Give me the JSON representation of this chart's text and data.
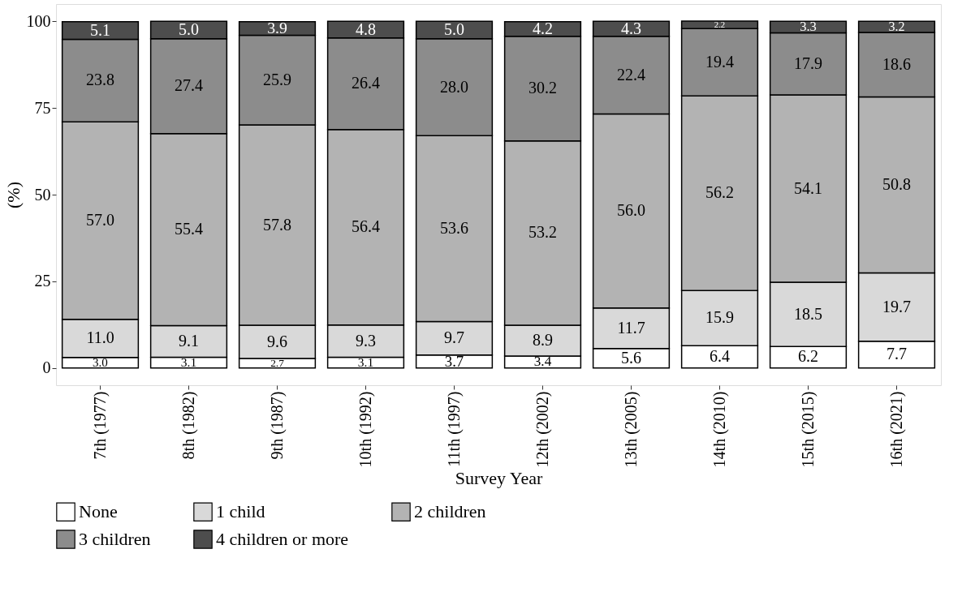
{
  "chart_data": {
    "type": "bar",
    "stacked": true,
    "xlabel": "Survey Year",
    "ylabel": "(%)",
    "categories": [
      "7th (1977)",
      "8th (1982)",
      "9th (1987)",
      "10th (1992)",
      "11th (1997)",
      "12th (2002)",
      "13th (2005)",
      "14th (2010)",
      "15th (2015)",
      "16th (2021)"
    ],
    "series": [
      {
        "name": "None",
        "color": "#ffffff",
        "values": [
          3.0,
          3.1,
          2.7,
          3.1,
          3.7,
          3.4,
          5.6,
          6.4,
          6.2,
          7.7
        ],
        "value_labels": [
          "3.0",
          "3.1",
          "2.7",
          "3.1",
          "3.7",
          "3.4",
          "5.6",
          "6.4",
          "6.2",
          "7.7"
        ]
      },
      {
        "name": "1 child",
        "color": "#d9d9d9",
        "values": [
          11.0,
          9.1,
          9.6,
          9.3,
          9.7,
          8.9,
          11.7,
          15.9,
          18.5,
          19.7
        ],
        "value_labels": [
          "11.0",
          "9.1",
          "9.6",
          "9.3",
          "9.7",
          "8.9",
          "11.7",
          "15.9",
          "18.5",
          "19.7"
        ]
      },
      {
        "name": "2 children",
        "color": "#b3b3b3",
        "values": [
          57.0,
          55.4,
          57.8,
          56.4,
          53.6,
          53.2,
          56.0,
          56.2,
          54.1,
          50.8
        ],
        "value_labels": [
          "57.0",
          "55.4",
          "57.8",
          "56.4",
          "53.6",
          "53.2",
          "56.0",
          "56.2",
          "54.1",
          "50.8"
        ]
      },
      {
        "name": "3 children",
        "color": "#8c8c8c",
        "values": [
          23.8,
          27.4,
          25.9,
          26.4,
          28.0,
          30.2,
          22.4,
          19.4,
          17.9,
          18.6
        ],
        "value_labels": [
          "23.8",
          "27.4",
          "25.9",
          "26.4",
          "28.0",
          "30.2",
          "22.4",
          "19.4",
          "17.9",
          "18.6"
        ]
      },
      {
        "name": "4 children or more",
        "color": "#4d4d4d",
        "values": [
          5.1,
          5.0,
          3.9,
          4.8,
          5.0,
          4.2,
          4.3,
          2.2,
          3.3,
          3.2
        ],
        "value_labels": [
          "5.1",
          "5.0",
          "3.9",
          "4.8",
          "5.0",
          "4.2",
          "4.3",
          "2.2",
          "3.3",
          "3.2"
        ]
      }
    ],
    "ylim": [
      -5,
      105
    ],
    "yticks": [
      0,
      25,
      50,
      75,
      100
    ],
    "grid": false,
    "legend": "bottom"
  }
}
